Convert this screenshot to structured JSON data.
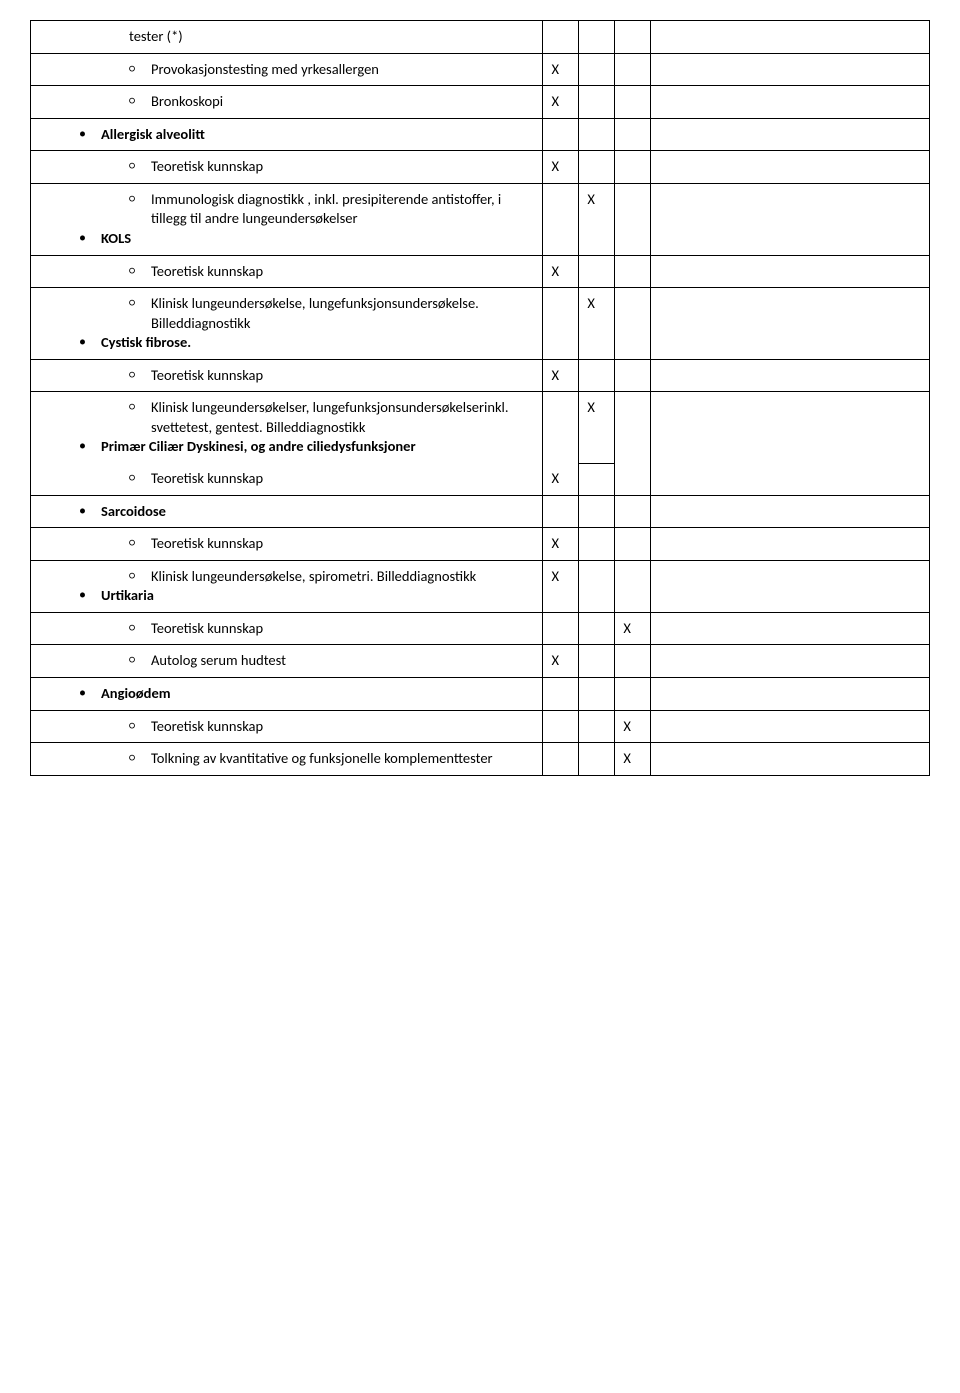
{
  "rows": [
    {
      "type": "sub",
      "text": "tester (*)",
      "c2": "",
      "c3": "",
      "c4": "",
      "c5": ""
    },
    {
      "type": "sub",
      "text": "Provokasjonstesting med yrkesallergen",
      "c2": "X",
      "c3": "",
      "c4": "",
      "c5": "",
      "circ": true
    },
    {
      "type": "sub",
      "text": "Bronkoskopi",
      "c2": "X",
      "c3": "",
      "c4": "",
      "c5": "",
      "circ": true
    },
    {
      "type": "bullet",
      "text": "Allergisk alveolitt",
      "c2": "",
      "c3": "",
      "c4": "",
      "c5": "",
      "bold": true
    },
    {
      "type": "sub",
      "text": "Teoretisk kunnskap",
      "c2": "X",
      "c3": "",
      "c4": "",
      "c5": "",
      "circ": true
    },
    {
      "type": "sub-bullet",
      "subtext": "Immunologisk diagnostikk , inkl. presipiterende antistoffer, i tillegg til andre lungeundersøkelser",
      "bullet_text": "KOLS",
      "c2": "",
      "c3": "X",
      "c4": "",
      "c5": "",
      "bold_bullet": true,
      "circ": true
    },
    {
      "type": "sub",
      "text": "Teoretisk kunnskap",
      "c2": "X",
      "c3": "",
      "c4": "",
      "c5": "",
      "circ": true
    },
    {
      "type": "sub-bullet",
      "subtext": "Klinisk lungeundersøkelse, lungefunksjonsundersøkelse. Billeddiagnostikk",
      "bullet_text": "Cystisk fibrose.",
      "c2": "",
      "c3": "X",
      "c4": "",
      "c5": "",
      "bold_bullet": true,
      "circ": true
    },
    {
      "type": "sub",
      "text": "Teoretisk kunnskap",
      "c2": "X",
      "c3": "",
      "c4": "",
      "c5": "",
      "circ": true
    },
    {
      "type": "sub-bullet-sub",
      "subtext": "Klinisk lungeundersøkelser, lungefunksjonsundersøkelserinkl. svettetest, gentest.  Billeddiagnostikk",
      "bullet_text": "Primær Ciliær Dyskinesi, og andre ciliedysfunksjoner",
      "sub2": "Teoretisk kunnskap",
      "c2": "X",
      "c3": "X",
      "c4": "",
      "c5": "",
      "bold_bullet": true,
      "circ": true
    },
    {
      "type": "bullet",
      "text": "Sarcoidose",
      "c2": "",
      "c3": "",
      "c4": "",
      "c5": "",
      "bold": true
    },
    {
      "type": "sub",
      "text": "Teoretisk kunnskap",
      "c2": "X",
      "c3": "",
      "c4": "",
      "c5": "",
      "circ": true
    },
    {
      "type": "sub-bullet",
      "subtext": "Klinisk lungeundersøkelse,  spirometri. Billeddiagnostikk",
      "bullet_text": "Urtikaria",
      "c2": "X",
      "c3": "",
      "c4": "",
      "c5": "",
      "bold_bullet": true,
      "circ": true
    },
    {
      "type": "sub",
      "text": "Teoretisk kunnskap",
      "c2": "",
      "c3": "",
      "c4": "X",
      "c5": "",
      "circ": true
    },
    {
      "type": "sub",
      "text": "Autolog serum hudtest",
      "c2": "X",
      "c3": "",
      "c4": "",
      "c5": "",
      "circ": true
    },
    {
      "type": "bullet",
      "text": "Angioødem",
      "c2": "",
      "c3": "",
      "c4": "",
      "c5": "",
      "bold": true
    },
    {
      "type": "sub",
      "text": "Teoretisk kunnskap",
      "c2": "",
      "c3": "",
      "c4": "X",
      "c5": "",
      "circ": true
    },
    {
      "type": "sub",
      "text": "Tolkning av kvantitative og funksjonelle komplementtester",
      "c2": "",
      "c3": "",
      "c4": "X",
      "c5": "",
      "circ": true
    }
  ]
}
